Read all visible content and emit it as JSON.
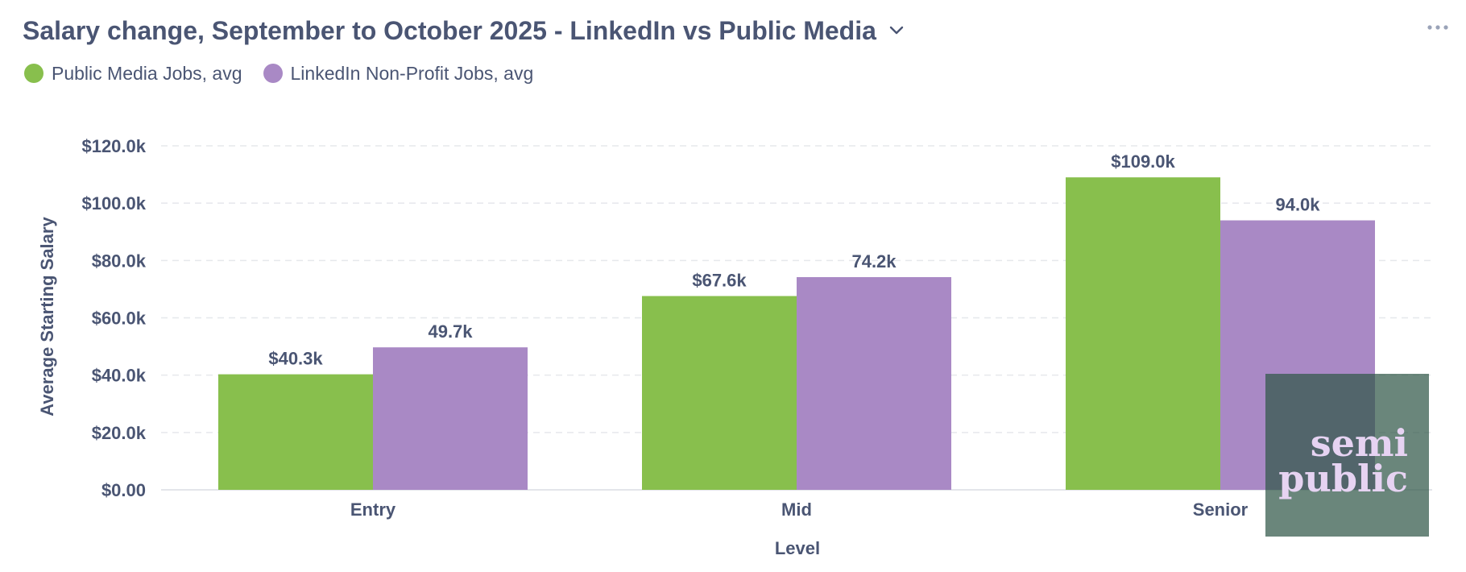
{
  "header": {
    "title": "Salary change, September to October 2025 - LinkedIn vs Public Media",
    "dropdown_icon": "chevron-down-icon",
    "more_icon": "more-horizontal-icon"
  },
  "legend": {
    "items": [
      {
        "label": "Public Media Jobs, avg",
        "color": "#88bf4d"
      },
      {
        "label": "LinkedIn Non-Profit Jobs, avg",
        "color": "#a989c5"
      }
    ]
  },
  "watermark": {
    "line1": "semi",
    "line2": "public"
  },
  "chart_data": {
    "type": "bar",
    "title": "Salary change, September to October 2025 - LinkedIn vs Public Media",
    "xlabel": "Level",
    "ylabel": "Average Starting Salary",
    "categories": [
      "Entry",
      "Mid",
      "Senior"
    ],
    "series": [
      {
        "name": "Public Media Jobs, avg",
        "color": "#88bf4d",
        "values": [
          40.3,
          67.6,
          109.0
        ],
        "labels": [
          "$40.3k",
          "$67.6k",
          "$109.0k"
        ]
      },
      {
        "name": "LinkedIn Non-Profit Jobs, avg",
        "color": "#a989c5",
        "values": [
          49.7,
          74.2,
          94.0
        ],
        "labels": [
          "49.7k",
          "74.2k",
          "94.0k"
        ]
      }
    ],
    "yticks": [
      0,
      20,
      40,
      60,
      80,
      100,
      120
    ],
    "ytick_labels": [
      "$0.00",
      "$20.0k",
      "$40.0k",
      "$60.0k",
      "$80.0k",
      "$100.0k",
      "$120.0k"
    ],
    "ylim": [
      0,
      120
    ],
    "grid": true,
    "legend_position": "top-left"
  }
}
